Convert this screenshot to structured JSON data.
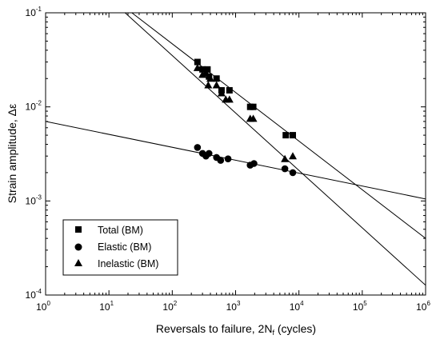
{
  "chart_data": {
    "type": "scatter",
    "xscale": "log",
    "yscale": "log",
    "xlim": [
      1,
      1000000
    ],
    "ylim": [
      0.0001,
      0.1
    ],
    "grid": false,
    "legend_position": "bottom-left",
    "xlabel": "Reversals to failure, 2N",
    "xlabel_sub": "f",
    "xlabel_suffix": " (cycles)",
    "ylabel": "Strain amplitude, Δε",
    "x_ticks": [
      {
        "value": 1,
        "base": "10",
        "exp": "0"
      },
      {
        "value": 10,
        "base": "10",
        "exp": "1"
      },
      {
        "value": 100,
        "base": "10",
        "exp": "2"
      },
      {
        "value": 1000,
        "base": "10",
        "exp": "3"
      },
      {
        "value": 10000,
        "base": "10",
        "exp": "4"
      },
      {
        "value": 100000,
        "base": "10",
        "exp": "5"
      },
      {
        "value": 1000000,
        "base": "10",
        "exp": "6"
      }
    ],
    "y_ticks": [
      {
        "value": 0.0001,
        "base": "10",
        "exp": "-4"
      },
      {
        "value": 0.001,
        "base": "10",
        "exp": "-3"
      },
      {
        "value": 0.01,
        "base": "10",
        "exp": "-2"
      },
      {
        "value": 0.1,
        "base": "10",
        "exp": "-1"
      }
    ],
    "series": [
      {
        "name": "Total (BM)",
        "marker": "square",
        "points": [
          [
            250,
            0.03
          ],
          [
            300,
            0.025
          ],
          [
            360,
            0.025
          ],
          [
            380,
            0.021
          ],
          [
            500,
            0.02
          ],
          [
            600,
            0.015
          ],
          [
            800,
            0.015
          ],
          [
            1700,
            0.01
          ],
          [
            1900,
            0.01
          ],
          [
            6200,
            0.005
          ],
          [
            8000,
            0.005
          ]
        ]
      },
      {
        "name": "Elastic (BM)",
        "marker": "circle",
        "points": [
          [
            250,
            0.0037
          ],
          [
            300,
            0.0032
          ],
          [
            340,
            0.003
          ],
          [
            380,
            0.0032
          ],
          [
            500,
            0.0029
          ],
          [
            580,
            0.0027
          ],
          [
            760,
            0.0028
          ],
          [
            1700,
            0.0024
          ],
          [
            1950,
            0.0025
          ],
          [
            6000,
            0.0022
          ],
          [
            8000,
            0.002
          ]
        ]
      },
      {
        "name": "Inelastic (BM)",
        "marker": "triangle",
        "points": [
          [
            250,
            0.026
          ],
          [
            300,
            0.022
          ],
          [
            340,
            0.023
          ],
          [
            370,
            0.017
          ],
          [
            400,
            0.02
          ],
          [
            500,
            0.017
          ],
          [
            600,
            0.014
          ],
          [
            700,
            0.012
          ],
          [
            800,
            0.012
          ],
          [
            1700,
            0.0075
          ],
          [
            1900,
            0.0075
          ],
          [
            6000,
            0.0028
          ],
          [
            8000,
            0.003
          ]
        ]
      }
    ],
    "fit_lines": [
      {
        "name": "total-fit",
        "from": [
          23,
          0.1
        ],
        "to": [
          1000000,
          0.0004
        ]
      },
      {
        "name": "elastic-fit",
        "from": [
          1,
          0.007
        ],
        "to": [
          1000000,
          0.00105
        ]
      },
      {
        "name": "inelastic-fit",
        "from": [
          18,
          0.1
        ],
        "to": [
          1000000,
          0.000127
        ]
      }
    ]
  }
}
